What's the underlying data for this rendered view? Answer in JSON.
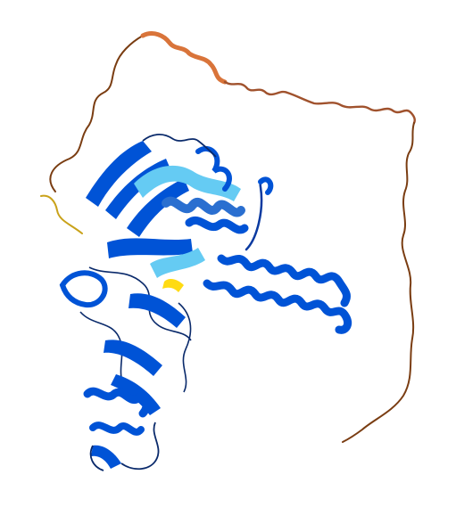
{
  "image": {
    "subject": "protein-structure-ribbon",
    "background": "#ffffff"
  },
  "colors": {
    "very_high": "#0053d6",
    "confident": "#65cbf3",
    "low": "#ffdb13",
    "very_low": "#ff7d45",
    "loop_dark": "#0a2a6b",
    "tail": "#b8612a",
    "tail_dark": "#7a3d12"
  }
}
